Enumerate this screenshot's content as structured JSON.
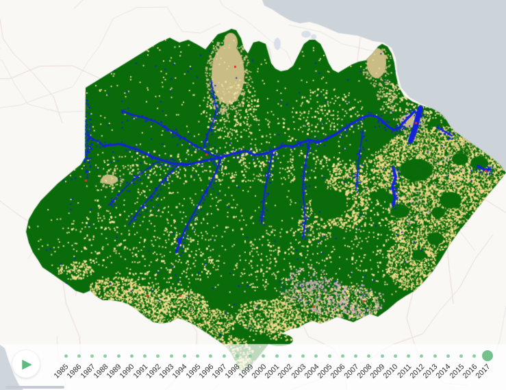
{
  "timeline": {
    "play_icon": "▶",
    "play_icon_color": "#5fba82",
    "play_button_bg": "#ffffff",
    "years": [
      "1985",
      "1986",
      "1987",
      "1988",
      "1989",
      "1990",
      "1991",
      "1992",
      "1993",
      "1994",
      "1995",
      "1996",
      "1997",
      "1998",
      "1999",
      "2000",
      "2001",
      "2002",
      "2003",
      "2004",
      "2005",
      "2006",
      "2007",
      "2008",
      "2009",
      "2010",
      "2011",
      "2012",
      "2013",
      "2014",
      "2015",
      "2016",
      "2017"
    ],
    "selected_year": "2017",
    "dot_color": "#8fcda5",
    "selected_dot_color": "#74c18d",
    "label_color": "#2f2f2f"
  },
  "map": {
    "colors": {
      "forest": "#0a6b0a",
      "pasture": "#f2df92",
      "pasture_light": "#f6e59f",
      "pasture_deep": "#efd98a",
      "nonforest_tan": "#c9bd85",
      "agriculture_pink": "#d6aec6",
      "mosaic_gray": "#a9aaa4",
      "water": "#1522dc",
      "urban": "#dc3a28",
      "ocean": "#ccd3d9",
      "land": "#f9f8f5",
      "admin_line_pink": "#ecd9d9",
      "admin_line_gray": "#e6e6e4",
      "lake": "#d9e1e8",
      "cloud": "#ebebe8",
      "overlay_band": "rgba(255,255,255,0.74)",
      "scrollbar": "#c5cbd3",
      "corner_water": "#cfd6db"
    }
  }
}
